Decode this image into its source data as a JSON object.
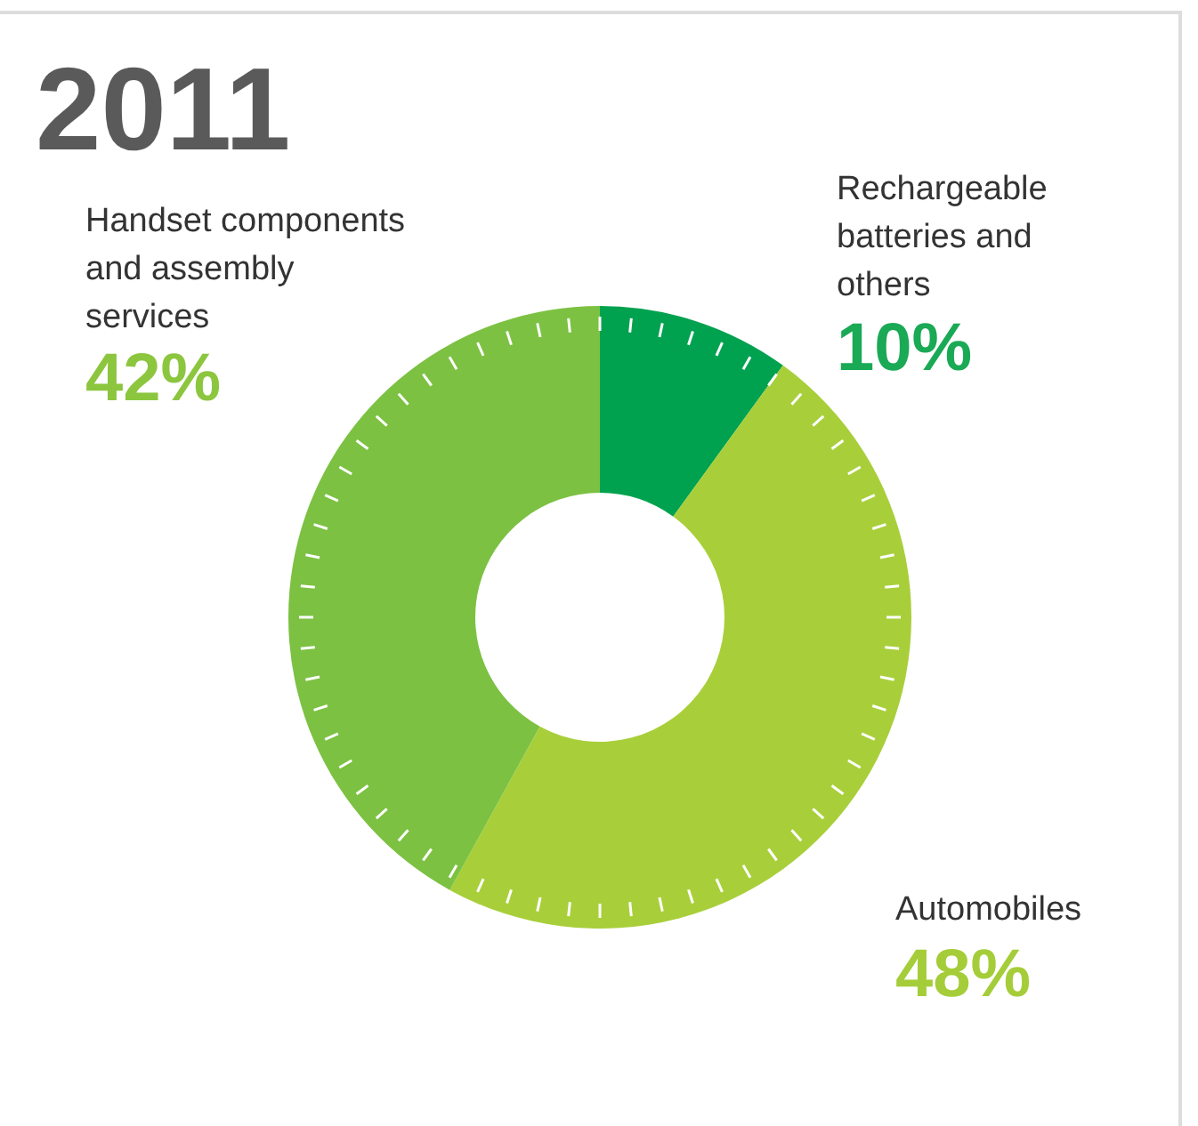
{
  "chart_data": {
    "type": "donut",
    "title": "2011",
    "categories": [
      "Rechargeable batteries and others",
      "Automobiles",
      "Handset components and assembly services"
    ],
    "values": [
      10,
      48,
      42
    ],
    "colors": [
      "#00a24f",
      "#a8cf3a",
      "#7cc142"
    ],
    "value_labels": [
      "10%",
      "48%",
      "42%"
    ]
  }
}
